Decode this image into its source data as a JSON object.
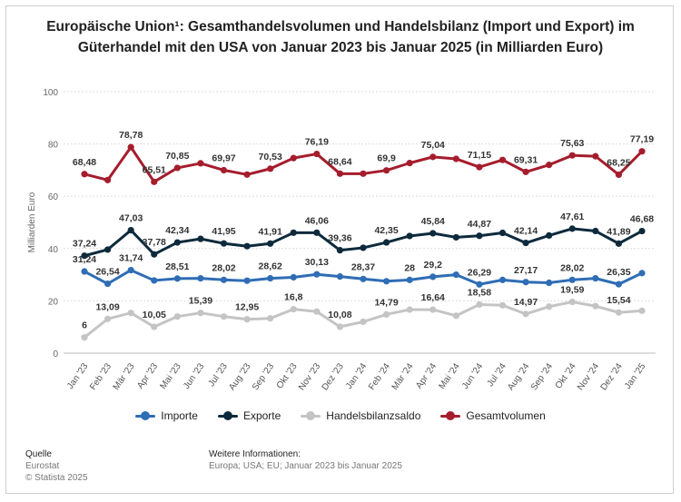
{
  "title": "Europäische Union¹: Gesamthandelsvolumen und Handelsbilanz (Import und Export) im Güterhandel mit den USA von Januar 2023 bis Januar 2025 (in Milliarden Euro)",
  "footer": {
    "source_label": "Quelle",
    "source_name": "Eurostat",
    "copyright": "© Statista 2025",
    "info_label": "Weitere Informationen:",
    "info_text": "Europa; USA; EU; Januar 2023 bis Januar 2025"
  },
  "chart_data": {
    "type": "line",
    "ylabel": "Milliarden Euro",
    "ylim": [
      0,
      100
    ],
    "yticks": [
      0,
      20,
      40,
      60,
      80,
      100
    ],
    "grid": true,
    "legend_position": "bottom",
    "categories": [
      "Jan '23",
      "Feb '23",
      "Mär '23",
      "Apr '23",
      "Mai '23",
      "Jun '23",
      "Jul '23",
      "Aug '23",
      "Sep '23",
      "Okt '23",
      "Nov '23",
      "Dez '23",
      "Jan '24",
      "Feb '24",
      "Mär '24",
      "Apr '24",
      "Mai '24",
      "Jun '24",
      "Jul '24",
      "Aug '24",
      "Sep '24",
      "Okt '24",
      "Nov '24",
      "Dez '24",
      "Jan '25"
    ],
    "series": [
      {
        "name": "Importe",
        "color": "#2f6db5",
        "values": [
          31.24,
          26.54,
          31.74,
          27.8,
          28.51,
          28.6,
          28.02,
          27.7,
          28.62,
          29.0,
          30.13,
          29.3,
          28.37,
          27.5,
          28.0,
          29.2,
          30.0,
          26.29,
          28.0,
          27.17,
          26.9,
          28.02,
          28.6,
          26.35,
          30.6
        ]
      },
      {
        "name": "Exporte",
        "color": "#0d2a3c",
        "values": [
          37.24,
          39.6,
          47.03,
          37.78,
          42.34,
          43.7,
          41.95,
          40.9,
          41.91,
          46.06,
          46.06,
          39.36,
          40.3,
          42.35,
          44.8,
          45.84,
          44.3,
          44.87,
          46.0,
          42.14,
          45.0,
          47.61,
          46.7,
          41.89,
          46.68
        ]
      },
      {
        "name": "Handelsbilanzsaldo",
        "color": "#c4c4c4",
        "values": [
          6,
          13.09,
          15.39,
          10.05,
          14.0,
          15.39,
          14.0,
          12.95,
          13.3,
          16.8,
          15.9,
          10.08,
          12.0,
          14.79,
          16.64,
          16.64,
          14.3,
          18.58,
          18.3,
          14.97,
          17.8,
          19.59,
          18.0,
          15.54,
          16.2
        ]
      },
      {
        "name": "Gesamtvolumen",
        "color": "#a51d2d",
        "values": [
          68.48,
          66.2,
          78.78,
          65.51,
          70.85,
          72.6,
          69.97,
          68.3,
          70.53,
          74.6,
          76.19,
          68.64,
          68.64,
          69.9,
          72.7,
          75.04,
          74.3,
          71.15,
          73.9,
          69.31,
          72.0,
          75.63,
          75.3,
          68.25,
          77.19
        ]
      }
    ],
    "data_labels": [
      {
        "series": 0,
        "index": 0,
        "text": "31,24"
      },
      {
        "series": 0,
        "index": 1,
        "text": "26,54"
      },
      {
        "series": 0,
        "index": 2,
        "text": "31,74"
      },
      {
        "series": 0,
        "index": 4,
        "text": "28,51"
      },
      {
        "series": 0,
        "index": 6,
        "text": "28,02"
      },
      {
        "series": 0,
        "index": 8,
        "text": "28,62"
      },
      {
        "series": 0,
        "index": 10,
        "text": "30,13"
      },
      {
        "series": 0,
        "index": 12,
        "text": "28,37"
      },
      {
        "series": 0,
        "index": 14,
        "text": "28"
      },
      {
        "series": 0,
        "index": 15,
        "text": "29,2"
      },
      {
        "series": 0,
        "index": 17,
        "text": "26,29"
      },
      {
        "series": 0,
        "index": 19,
        "text": "27,17"
      },
      {
        "series": 0,
        "index": 21,
        "text": "28,02"
      },
      {
        "series": 0,
        "index": 23,
        "text": "26,35"
      },
      {
        "series": 1,
        "index": 0,
        "text": "37,24"
      },
      {
        "series": 1,
        "index": 2,
        "text": "47,03"
      },
      {
        "series": 1,
        "index": 3,
        "text": "37,78"
      },
      {
        "series": 1,
        "index": 4,
        "text": "42,34"
      },
      {
        "series": 1,
        "index": 6,
        "text": "41,95"
      },
      {
        "series": 1,
        "index": 8,
        "text": "41,91"
      },
      {
        "series": 1,
        "index": 10,
        "text": "46,06"
      },
      {
        "series": 1,
        "index": 11,
        "text": "39,36"
      },
      {
        "series": 1,
        "index": 13,
        "text": "42,35"
      },
      {
        "series": 1,
        "index": 15,
        "text": "45,84"
      },
      {
        "series": 1,
        "index": 17,
        "text": "44,87"
      },
      {
        "series": 1,
        "index": 19,
        "text": "42,14"
      },
      {
        "series": 1,
        "index": 21,
        "text": "47,61"
      },
      {
        "series": 1,
        "index": 23,
        "text": "41,89"
      },
      {
        "series": 1,
        "index": 24,
        "text": "46,68"
      },
      {
        "series": 2,
        "index": 0,
        "text": "6"
      },
      {
        "series": 2,
        "index": 1,
        "text": "13,09"
      },
      {
        "series": 2,
        "index": 3,
        "text": "10,05"
      },
      {
        "series": 2,
        "index": 5,
        "text": "15,39"
      },
      {
        "series": 2,
        "index": 7,
        "text": "12,95"
      },
      {
        "series": 2,
        "index": 9,
        "text": "16,8"
      },
      {
        "series": 2,
        "index": 11,
        "text": "10,08"
      },
      {
        "series": 2,
        "index": 13,
        "text": "14,79"
      },
      {
        "series": 2,
        "index": 15,
        "text": "16,64"
      },
      {
        "series": 2,
        "index": 17,
        "text": "18,58"
      },
      {
        "series": 2,
        "index": 19,
        "text": "14,97"
      },
      {
        "series": 2,
        "index": 21,
        "text": "19,59"
      },
      {
        "series": 2,
        "index": 23,
        "text": "15,54"
      },
      {
        "series": 3,
        "index": 0,
        "text": "68,48"
      },
      {
        "series": 3,
        "index": 2,
        "text": "78,78"
      },
      {
        "series": 3,
        "index": 3,
        "text": "65,51"
      },
      {
        "series": 3,
        "index": 4,
        "text": "70,85"
      },
      {
        "series": 3,
        "index": 6,
        "text": "69,97"
      },
      {
        "series": 3,
        "index": 8,
        "text": "70,53"
      },
      {
        "series": 3,
        "index": 10,
        "text": "76,19"
      },
      {
        "series": 3,
        "index": 11,
        "text": "68,64"
      },
      {
        "series": 3,
        "index": 13,
        "text": "69,9"
      },
      {
        "series": 3,
        "index": 15,
        "text": "75,04"
      },
      {
        "series": 3,
        "index": 17,
        "text": "71,15"
      },
      {
        "series": 3,
        "index": 19,
        "text": "69,31"
      },
      {
        "series": 3,
        "index": 21,
        "text": "75,63"
      },
      {
        "series": 3,
        "index": 23,
        "text": "68,25"
      },
      {
        "series": 3,
        "index": 24,
        "text": "77,19"
      }
    ]
  }
}
